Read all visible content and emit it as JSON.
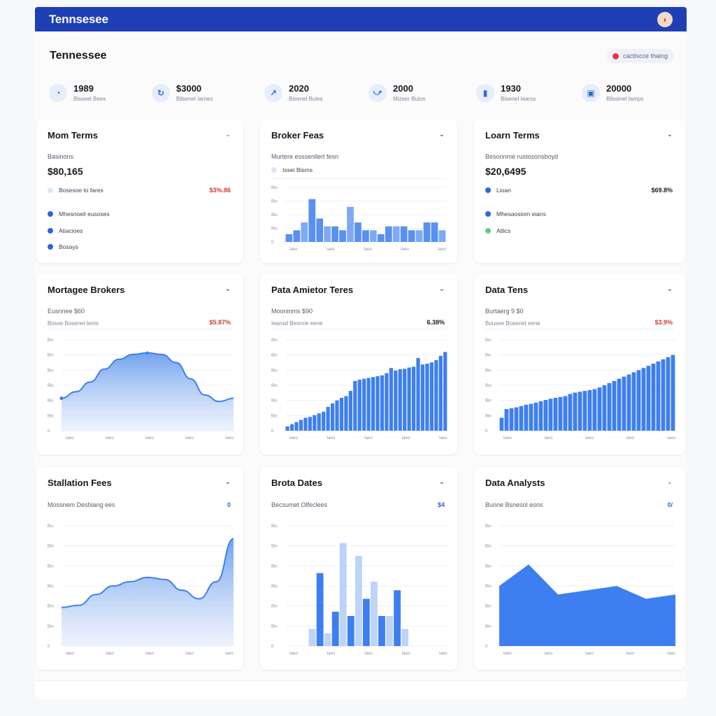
{
  "app": {
    "title": "Tennsesee",
    "avatar_glyph": "◗"
  },
  "page": {
    "title": "Tennessee",
    "status_label": "cactiscce thaing",
    "status_color": "#e63a46"
  },
  "kpis": [
    {
      "value": "1989",
      "label": "Bisseel Bees",
      "icon": "pie-chart-icon"
    },
    {
      "value": "$3000",
      "label": "Bilsenel Iarnes",
      "icon": "refresh-icon"
    },
    {
      "value": "2020",
      "label": "Bisenel Buies",
      "icon": "trend-icon"
    },
    {
      "value": "2000",
      "label": "Mizeer Buios",
      "icon": "handshake-icon"
    },
    {
      "value": "1930",
      "label": "Bisenel Iearss",
      "icon": "bar-icon"
    },
    {
      "value": "20000",
      "label": "Bilssinel Iamps",
      "icon": "wallet-icon"
    }
  ],
  "cards": {
    "c1": {
      "title": "Mom Terms",
      "sub": "Basinons",
      "big": "$80,165",
      "row": "Bosesoe to fares",
      "delta": "$3%.86",
      "legend": [
        {
          "label": "Mhesnoeil eusoses",
          "color": "#2d66d8"
        },
        {
          "label": "Atiacioes",
          "color": "#2d66d8"
        },
        {
          "label": "Bosays",
          "color": "#2d66d8"
        }
      ]
    },
    "c2": {
      "title": "Broker Feas",
      "sub": "Murtere esssenllert fesn",
      "legend_label": "Issei Bisms"
    },
    "c3": {
      "title": "Loarn Terms",
      "sub": "Besonnme rustosonsboyd",
      "big": "$20,6495",
      "row": "Lioan",
      "delta": "$69.8%",
      "legend": [
        {
          "label": "Mhesaosiom eians",
          "color": "#2d66d8"
        },
        {
          "label": "Atlics",
          "color": "#5bd17a"
        }
      ]
    },
    "c4": {
      "title": "Mortagee Brokers",
      "sub": "Eusnnee $60",
      "row": "Bosse Bosenel tems",
      "delta": "$5.87%"
    },
    "c5": {
      "title": "Pata Amietor Teres",
      "sub": "Mooninms $90",
      "row": "Ieansd Besnne eene",
      "delta": "6.38%"
    },
    "c6": {
      "title": "Data Tens",
      "sub": "Burtaerg 9 $0",
      "row": "Bousee Bosenet eene",
      "delta": "$3.9%"
    },
    "c7": {
      "title": "Stallation Fees",
      "sub": "Mossnem Deshiang ees",
      "delta": "0"
    },
    "c8": {
      "title": "Brota Dates",
      "sub": "Becsumet Olfeclees",
      "delta": "$4"
    },
    "c9": {
      "title": "Data Analysts",
      "sub": "Bunne Bsnesol eons",
      "delta": "0/"
    }
  },
  "chart_data": [
    {
      "id": "broker-feas",
      "type": "bar",
      "values": [
        2,
        3,
        5,
        11,
        6,
        4,
        4,
        3,
        9,
        5,
        3,
        3,
        2,
        4,
        4,
        4,
        3,
        3,
        5,
        5,
        3
      ],
      "ylim": [
        0,
        14
      ]
    },
    {
      "id": "mortagee-brokers",
      "type": "area",
      "values": [
        10,
        12,
        15,
        19,
        22,
        23.5,
        24,
        23.5,
        21,
        16,
        11,
        9,
        10
      ],
      "ylim": [
        0,
        28
      ]
    },
    {
      "id": "pata-amietor-teres",
      "type": "bar",
      "values": [
        1,
        1.5,
        2,
        2.5,
        3,
        3.2,
        3.6,
        4,
        4.4,
        5.5,
        6.3,
        7,
        7.6,
        8,
        9.2,
        11.5,
        11.8,
        12,
        12.2,
        12.4,
        12.6,
        12.8,
        13.3,
        14.5,
        13.9,
        14.2,
        14.3,
        14.6,
        14.8,
        16.8,
        15.3,
        15.5,
        15.8,
        16.3,
        17.3,
        18.2
      ],
      "ylim": [
        0,
        21
      ]
    },
    {
      "id": "data-tens",
      "type": "bar",
      "values": [
        3,
        5,
        5.2,
        5.4,
        5.7,
        6,
        6.2,
        6.5,
        6.8,
        7.1,
        7.4,
        7.6,
        7.8,
        8,
        8.5,
        8.8,
        9,
        9.2,
        9.4,
        9.6,
        10,
        10.5,
        11,
        11.5,
        12,
        12.5,
        13,
        13.5,
        14,
        14.5,
        15,
        15.5,
        16,
        16.5,
        17,
        17.5
      ],
      "ylim": [
        0,
        21
      ]
    },
    {
      "id": "stallation-fees",
      "type": "area",
      "values": [
        9,
        9.5,
        12,
        14,
        15,
        16,
        15.5,
        13,
        11,
        15,
        25
      ],
      "ylim": [
        0,
        28
      ]
    },
    {
      "id": "brota-dates",
      "type": "bar",
      "values": [
        0,
        0,
        0,
        4,
        17,
        3,
        8,
        24,
        7,
        21,
        11,
        15,
        7,
        7,
        13,
        4,
        0,
        0,
        0,
        0,
        0
      ],
      "ylim": [
        0,
        28
      ]
    },
    {
      "id": "data-analysts",
      "type": "area",
      "values": [
        14,
        19,
        12,
        13,
        14,
        11,
        12
      ],
      "ylim": [
        0,
        28
      ]
    }
  ],
  "ticks": {
    "x": [
      "Iaeo",
      "Iaeo",
      "Iaeo",
      "Iaeo",
      "Iaeo"
    ],
    "y5": [
      "Bio",
      "Bio",
      "Bio",
      "Bio",
      "0"
    ],
    "y7": [
      "Bio",
      "Bio",
      "Bio",
      "Bio",
      "Bio",
      "Bio",
      "0"
    ]
  }
}
